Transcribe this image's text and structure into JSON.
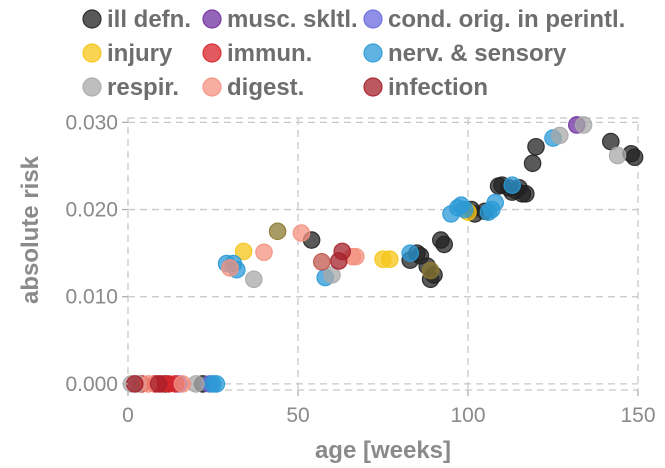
{
  "chart_data": {
    "type": "scatter",
    "xlabel": "age [weeks]",
    "ylabel": "absolute risk",
    "xlim": [
      0,
      150
    ],
    "ylim": [
      -0.0007,
      0.0305
    ],
    "x_ticks": [
      0,
      50,
      100,
      150
    ],
    "x_tick_labels": [
      "0",
      "50",
      "100",
      "150"
    ],
    "y_ticks": [
      0.0,
      0.01,
      0.02,
      0.03
    ],
    "y_tick_labels": [
      "0.000",
      "0.010",
      "0.020",
      "0.030"
    ],
    "grid": true,
    "legend_position": "top",
    "series": [
      {
        "name": "ill defn.",
        "color": "#222222",
        "points": [
          [
            11,
            0
          ],
          [
            22,
            0
          ],
          [
            54,
            0.0165
          ],
          [
            83,
            0.0142
          ],
          [
            85,
            0.015
          ],
          [
            86,
            0.0147
          ],
          [
            88,
            0.0135
          ],
          [
            89,
            0.012
          ],
          [
            90,
            0.0125
          ],
          [
            92,
            0.0165
          ],
          [
            93,
            0.016
          ],
          [
            101,
            0.02
          ],
          [
            102,
            0.0195
          ],
          [
            105,
            0.0198
          ],
          [
            109,
            0.0227
          ],
          [
            110,
            0.0228
          ],
          [
            112,
            0.0225
          ],
          [
            113,
            0.022
          ],
          [
            114,
            0.0222
          ],
          [
            115,
            0.0225
          ],
          [
            116,
            0.0218
          ],
          [
            117,
            0.0218
          ],
          [
            119,
            0.0253
          ],
          [
            120,
            0.0272
          ],
          [
            142,
            0.0278
          ],
          [
            148,
            0.0264
          ],
          [
            149,
            0.026
          ]
        ]
      },
      {
        "name": "musc. skltl.",
        "color": "#7030a0",
        "points": [
          [
            132,
            0.0297
          ]
        ]
      },
      {
        "name": "cond. orig. in perintl.",
        "color": "#6a6ae0",
        "points": [
          [
            15,
            0
          ],
          [
            24,
            0
          ]
        ]
      },
      {
        "name": "injury",
        "color": "#f5c518",
        "points": [
          [
            34,
            0.0152
          ],
          [
            75,
            0.0143
          ],
          [
            77,
            0.0143
          ],
          [
            100,
            0.0197
          ]
        ]
      },
      {
        "name": "immun.",
        "color": "#d8232a",
        "points": [
          [
            4,
            0
          ],
          [
            8,
            0
          ],
          [
            10,
            0
          ],
          [
            12,
            0
          ],
          [
            14,
            0
          ]
        ]
      },
      {
        "name": "nerv. & sensory",
        "color": "#2b9ad6",
        "points": [
          [
            25,
            0
          ],
          [
            26,
            0
          ],
          [
            29,
            0.0138
          ],
          [
            31,
            0.0138
          ],
          [
            32,
            0.0131
          ],
          [
            58,
            0.0122
          ],
          [
            83,
            0.015
          ],
          [
            95,
            0.0195
          ],
          [
            97,
            0.0202
          ],
          [
            98,
            0.0205
          ],
          [
            99,
            0.02
          ],
          [
            106,
            0.0197
          ],
          [
            107,
            0.02
          ],
          [
            108,
            0.0208
          ],
          [
            113,
            0.0228
          ],
          [
            125,
            0.0282
          ]
        ]
      },
      {
        "name": "respir.",
        "color": "#a8a8a8",
        "points": [
          [
            1,
            0
          ],
          [
            3,
            0
          ],
          [
            20,
            0
          ],
          [
            37,
            0.012
          ],
          [
            60,
            0.0125
          ],
          [
            127,
            0.0285
          ],
          [
            134,
            0.0297
          ],
          [
            144,
            0.0262
          ]
        ]
      },
      {
        "name": "digest.",
        "color": "#f4917f",
        "points": [
          [
            6,
            0
          ],
          [
            16,
            0
          ],
          [
            30,
            0.0133
          ],
          [
            40,
            0.0151
          ],
          [
            51,
            0.0173
          ],
          [
            66,
            0.0146
          ],
          [
            67,
            0.0146
          ]
        ]
      },
      {
        "name": "infection",
        "color": "#a6202a",
        "points": [
          [
            2,
            0
          ],
          [
            9,
            0
          ],
          [
            62,
            0.0141
          ],
          [
            63,
            0.0152
          ]
        ]
      },
      {
        "name": "",
        "color": "#8c7a32",
        "points": [
          [
            44,
            0.0175
          ],
          [
            89,
            0.013
          ]
        ]
      },
      {
        "name": "",
        "color": "#c0584e",
        "points": [
          [
            57,
            0.014
          ]
        ]
      }
    ]
  }
}
